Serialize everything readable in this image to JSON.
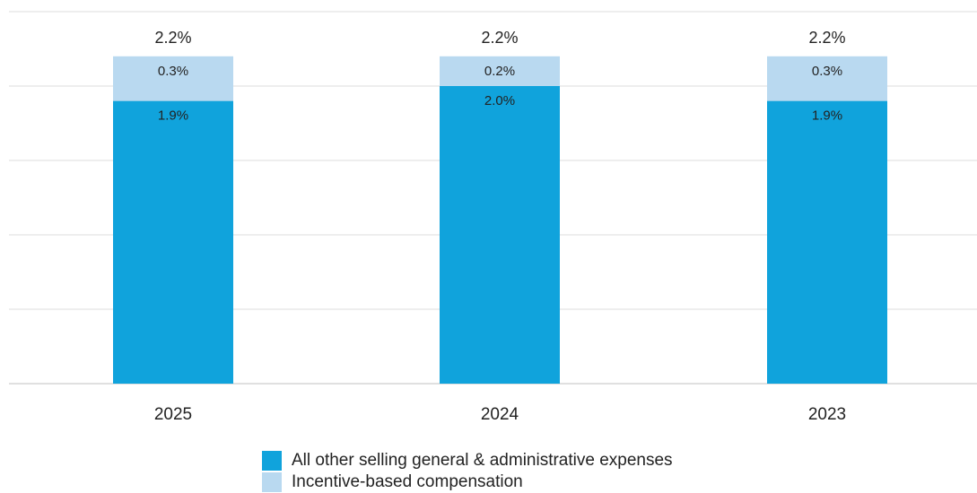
{
  "chart_data": {
    "type": "bar",
    "stacked": true,
    "categories": [
      "2025",
      "2024",
      "2023"
    ],
    "series": [
      {
        "name": "All other selling general & administrative expenses",
        "values": [
          1.9,
          2.0,
          1.9
        ],
        "labels": [
          "1.9%",
          "2.0%",
          "1.9%"
        ],
        "color": "#10a3dc"
      },
      {
        "name": "Incentive-based compensation",
        "values": [
          0.3,
          0.2,
          0.3
        ],
        "labels": [
          "0.3%",
          "0.2%",
          "0.3%"
        ],
        "color": "#b9d9f0"
      }
    ],
    "totals": [
      2.2,
      2.2,
      2.2
    ],
    "total_labels": [
      "2.2%",
      "2.2%",
      "2.2%"
    ],
    "ylim": [
      0,
      2.5
    ],
    "grid": true,
    "legend_position": "bottom"
  }
}
